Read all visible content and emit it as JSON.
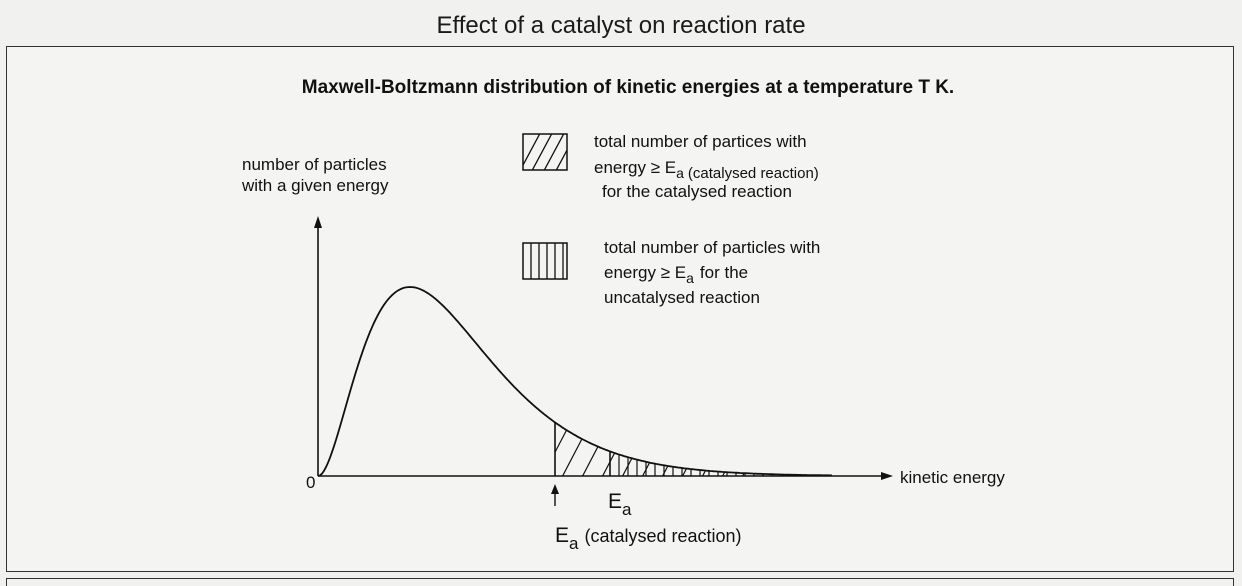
{
  "page_title": "Effect of a catalyst on reaction rate",
  "diagram": {
    "heading": "Maxwell-Boltzmann distribution of kinetic energies at a temperature T K.",
    "y_axis_label": [
      "number of particles",
      "with a given energy"
    ],
    "x_axis_label": "kinetic energy",
    "origin_label": "0",
    "legend": [
      {
        "pattern": "diagonal-hatch",
        "lines": [
          "total number of partices with",
          "energy ≥ E",
          "for the catalysed reaction"
        ],
        "subscript": "a",
        "small_note": "(catalysed reaction)"
      },
      {
        "pattern": "vertical-hatch",
        "lines": [
          "total number of particles with",
          "energy ≥ E",
          "for the",
          "uncatalysed reaction"
        ],
        "subscript": "a"
      }
    ],
    "markers": {
      "uncatalysed": {
        "main": "E",
        "sub": "a"
      },
      "catalysed": {
        "main": "E",
        "sub": "a",
        "note": "(catalysed reaction)"
      }
    },
    "colors": {
      "line": "#111111",
      "background": "#f4f4f2"
    }
  }
}
